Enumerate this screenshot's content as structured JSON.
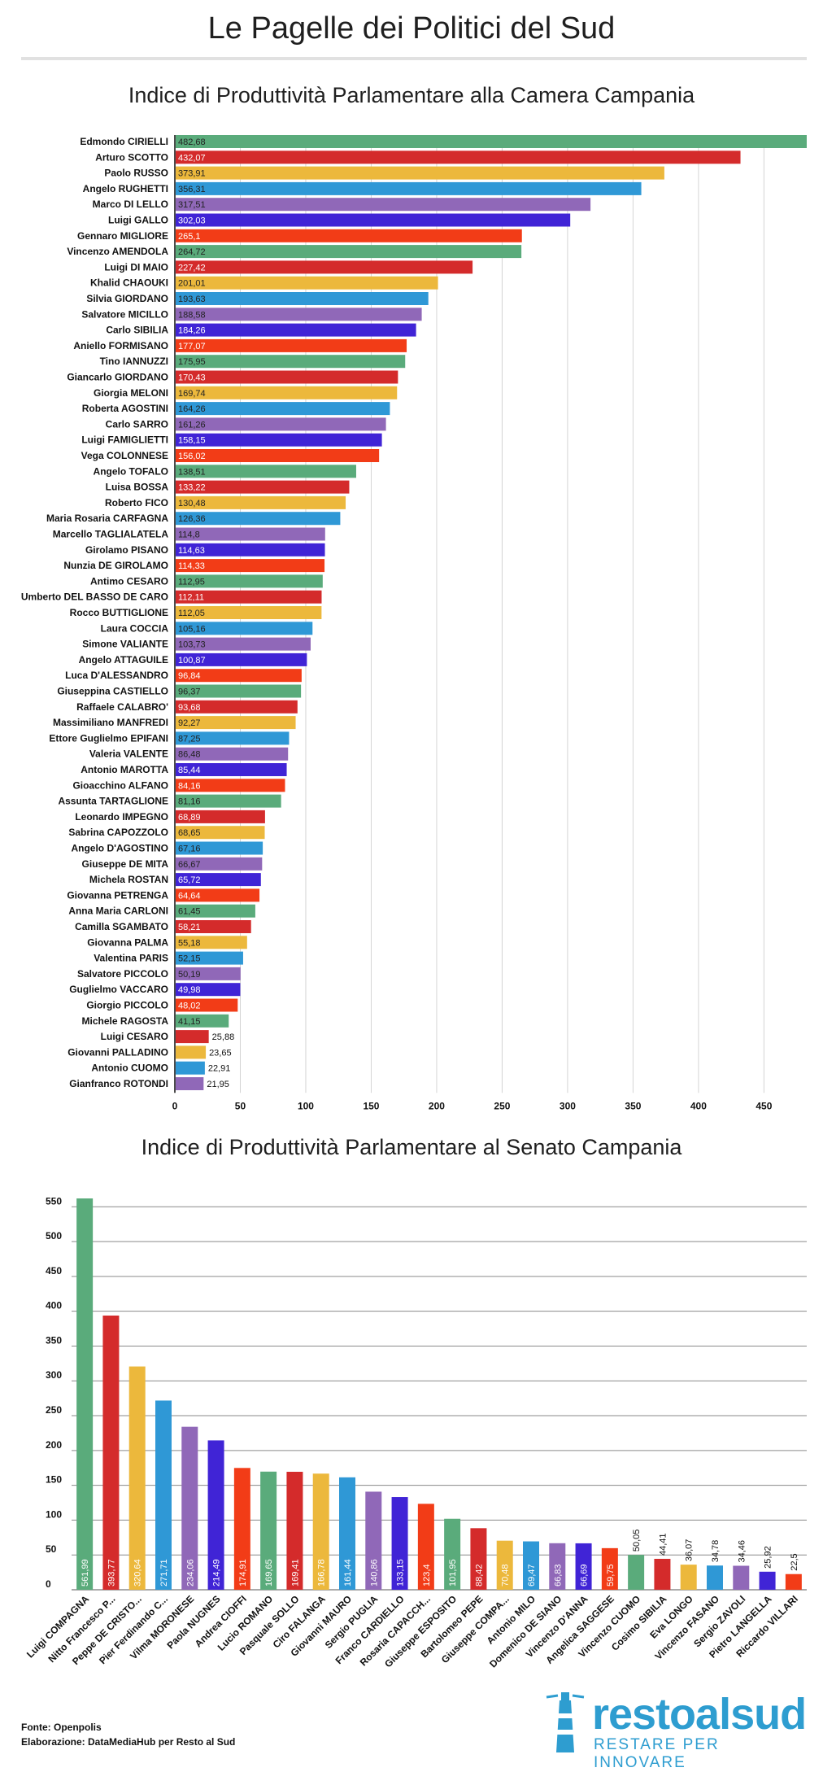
{
  "header": {
    "title": "Le Pagelle dei Politici del Sud"
  },
  "chart_data": [
    {
      "type": "bar",
      "orientation": "horizontal",
      "title": "Indice di Produttività Parlamentare alla Camera Campania",
      "xlim": [
        0,
        482.68
      ],
      "ticks": [
        0,
        50,
        100,
        150,
        200,
        250,
        300,
        350,
        400,
        450
      ],
      "grid": true,
      "categories": [
        "Edmondo CIRIELLI",
        "Arturo SCOTTO",
        "Paolo RUSSO",
        "Angelo RUGHETTI",
        "Marco DI LELLO",
        "Luigi GALLO",
        "Gennaro MIGLIORE",
        "Vincenzo AMENDOLA",
        "Luigi DI MAIO",
        "Khalid CHAOUKI",
        "Silvia GIORDANO",
        "Salvatore MICILLO",
        "Carlo SIBILIA",
        "Aniello FORMISANO",
        "Tino IANNUZZI",
        "Giancarlo GIORDANO",
        "Giorgia MELONI",
        "Roberta AGOSTINI",
        "Carlo SARRO",
        "Luigi FAMIGLIETTI",
        "Vega COLONNESE",
        "Angelo TOFALO",
        "Luisa BOSSA",
        "Roberto FICO",
        "Maria Rosaria CARFAGNA",
        "Marcello TAGLIALATELA",
        "Girolamo PISANO",
        "Nunzia DE GIROLAMO",
        "Antimo CESARO",
        "Umberto DEL BASSO DE CARO",
        "Rocco BUTTIGLIONE",
        "Laura COCCIA",
        "Simone VALIANTE",
        "Angelo ATTAGUILE",
        "Luca D'ALESSANDRO",
        "Giuseppina CASTIELLO",
        "Raffaele CALABRO'",
        "Massimiliano MANFREDI",
        "Ettore Guglielmo EPIFANI",
        "Valeria VALENTE",
        "Antonio MAROTTA",
        "Gioacchino ALFANO",
        "Assunta TARTAGLIONE",
        "Leonardo IMPEGNO",
        "Sabrina CAPOZZOLO",
        "Angelo D'AGOSTINO",
        "Giuseppe DE MITA",
        "Michela ROSTAN",
        "Giovanna PETRENGA",
        "Anna Maria CARLONI",
        "Camilla SGAMBATO",
        "Giovanna PALMA",
        "Valentina PARIS",
        "Salvatore PICCOLO",
        "Guglielmo VACCARO",
        "Giorgio PICCOLO",
        "Michele RAGOSTA",
        "Luigi CESARO",
        "Giovanni PALLADINO",
        "Antonio CUOMO",
        "Gianfranco ROTONDI"
      ],
      "values": [
        482.68,
        432.07,
        373.91,
        356.31,
        317.51,
        302.03,
        265.1,
        264.72,
        227.42,
        201.01,
        193.63,
        188.58,
        184.26,
        177.07,
        175.95,
        170.43,
        169.74,
        164.26,
        161.26,
        158.15,
        156.02,
        138.51,
        133.22,
        130.48,
        126.36,
        114.8,
        114.63,
        114.33,
        112.95,
        112.11,
        112.05,
        105.16,
        103.73,
        100.87,
        96.84,
        96.37,
        93.68,
        92.27,
        87.25,
        86.48,
        85.44,
        84.16,
        81.16,
        68.89,
        68.65,
        67.16,
        66.67,
        65.72,
        64.64,
        61.45,
        58.21,
        55.18,
        52.15,
        50.19,
        49.98,
        48.02,
        41.15,
        25.88,
        23.65,
        22.91,
        21.95
      ],
      "labels": [
        "482,68",
        "432,07",
        "373,91",
        "356,31",
        "317,51",
        "302,03",
        "265,1",
        "264,72",
        "227,42",
        "201,01",
        "193,63",
        "188,58",
        "184,26",
        "177,07",
        "175,95",
        "170,43",
        "169,74",
        "164,26",
        "161,26",
        "158,15",
        "156,02",
        "138,51",
        "133,22",
        "130,48",
        "126,36",
        "114,8",
        "114,63",
        "114,33",
        "112,95",
        "112,11",
        "112,05",
        "105,16",
        "103,73",
        "100,87",
        "96,84",
        "96,37",
        "93,68",
        "92,27",
        "87,25",
        "86,48",
        "85,44",
        "84,16",
        "81,16",
        "68,89",
        "68,65",
        "67,16",
        "66,67",
        "65,72",
        "64,64",
        "61,45",
        "58,21",
        "55,18",
        "52,15",
        "50,19",
        "49,98",
        "48,02",
        "41,15",
        "25,88",
        "23,65",
        "22,91",
        "21,95"
      ],
      "palette": [
        "#5aab7b",
        "#d42b2b",
        "#ecb83c",
        "#2f98d6",
        "#9068b8",
        "#4024d6",
        "#f23c17"
      ]
    },
    {
      "type": "bar",
      "orientation": "vertical",
      "title": "Indice di Produttività Parlamentare al Senato Campania",
      "ylim": [
        0,
        561.99
      ],
      "ticks": [
        0,
        50,
        100,
        150,
        200,
        250,
        300,
        350,
        400,
        450,
        500,
        550
      ],
      "grid": true,
      "categories": [
        "Luigi COMPAGNA",
        "Nitto Francesco P...",
        "Peppe DE CRISTO...",
        "Pier Ferdinando C...",
        "Vilma MORONESE",
        "Paola NUGNES",
        "Andrea CIOFFI",
        "Lucio ROMANO",
        "Pasquale SOLLO",
        "Ciro FALANGA",
        "Giovanni MAURO",
        "Sergio PUGLIA",
        "Franco CARDIELLO",
        "Rosaria CAPACCH...",
        "Giuseppe ESPOSITO",
        "Bartolomeo PEPE",
        "Giuseppe COMPA...",
        "Antonio MILO",
        "Domenico DE SIANO",
        "Vincenzo D'ANNA",
        "Angelica SAGGESE",
        "Vincenzo CUOMO",
        "Cosimo SIBILIA",
        "Eva LONGO",
        "Vincenzo FASANO",
        "Sergio ZAVOLI",
        "Pietro LANGELLA",
        "Riccardo VILLARI"
      ],
      "values": [
        561.99,
        393.77,
        320.64,
        271.71,
        234.06,
        214.49,
        174.91,
        169.65,
        169.41,
        166.78,
        161.44,
        140.86,
        133.15,
        123.4,
        101.95,
        88.42,
        70.48,
        69.47,
        66.83,
        66.69,
        59.75,
        50.05,
        44.41,
        36.07,
        34.78,
        34.46,
        25.92,
        22.5
      ],
      "labels": [
        "561,99",
        "393,77",
        "320,64",
        "271,71",
        "234,06",
        "214,49",
        "174,91",
        "169,65",
        "169,41",
        "166,78",
        "161,44",
        "140,86",
        "133,15",
        "123,4",
        "101,95",
        "88,42",
        "70,48",
        "69,47",
        "66,83",
        "66,69",
        "59,75",
        "50,05",
        "44,41",
        "36,07",
        "34,78",
        "34,46",
        "25,92",
        "22,5"
      ],
      "palette": [
        "#5aab7b",
        "#d42b2b",
        "#ecb83c",
        "#2f98d6",
        "#9068b8",
        "#4024d6",
        "#f23c17"
      ]
    }
  ],
  "footer": {
    "source": "Fonte: Openpolis",
    "credit": "Elaborazione: DataMediaHub per Resto al Sud"
  },
  "logo": {
    "wordmark": "restoalsud",
    "tagline": "RESTARE PER INNOVARE",
    "color": "#2e9dd0",
    "icon": "lighthouse-icon"
  }
}
